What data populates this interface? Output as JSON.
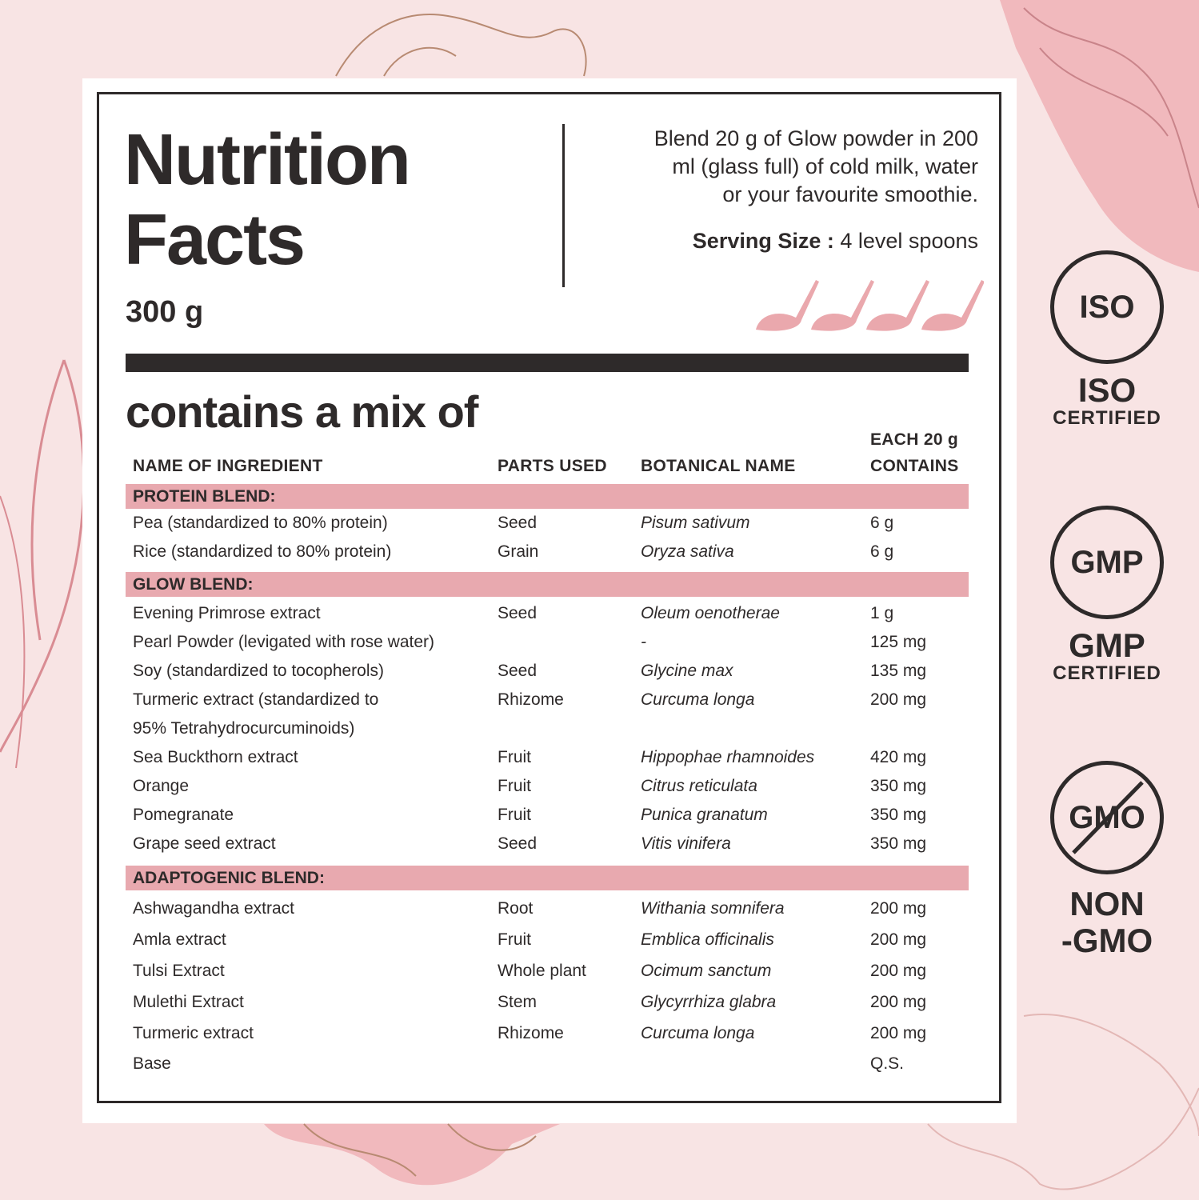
{
  "title_line1": "Nutrition",
  "title_line2": "Facts",
  "net_weight": "300 g",
  "directions": [
    "Blend 20 g of Glow powder in 200",
    "ml (glass full) of cold milk, water",
    "or your favourite smoothie."
  ],
  "serving_label": "Serving Size :",
  "serving_value": "4 level spoons",
  "spoon_icons": 4,
  "mix_heading": "contains a mix of",
  "columns": {
    "name": "NAME OF INGREDIENT",
    "parts": "PARTS USED",
    "botanical": "BOTANICAL NAME",
    "amount_line1": "EACH 20 g",
    "amount_line2": "CONTAINS"
  },
  "blends": [
    {
      "name": "PROTEIN BLEND:",
      "rows": [
        {
          "name": "Pea (standardized to 80% protein)",
          "parts": "Seed",
          "botanical": "Pisum sativum",
          "amount": "6 g"
        },
        {
          "name": "Rice (standardized to 80% protein)",
          "parts": "Grain",
          "botanical": "Oryza sativa",
          "amount": "6 g"
        }
      ]
    },
    {
      "name": "GLOW BLEND:",
      "rows": [
        {
          "name": "Evening Primrose extract",
          "parts": "Seed",
          "botanical": "Oleum oenotherae",
          "amount": "1 g"
        },
        {
          "name": "Pearl Powder (levigated with rose water)",
          "parts": "",
          "botanical": "-",
          "amount": "125 mg"
        },
        {
          "name": "Soy (standardized to tocopherols)",
          "parts": "Seed",
          "botanical": "Glycine max",
          "amount": "135 mg"
        },
        {
          "name": "Turmeric extract (standardized to",
          "parts": "Rhizome",
          "botanical": "Curcuma longa",
          "amount": "200 mg"
        },
        {
          "name": "95% Tetrahydrocurcuminoids)",
          "parts": "",
          "botanical": "",
          "amount": ""
        },
        {
          "name": "Sea Buckthorn extract",
          "parts": "Fruit",
          "botanical": "Hippophae rhamnoides",
          "amount": "420 mg"
        },
        {
          "name": "Orange",
          "parts": "Fruit",
          "botanical": "Citrus reticulata",
          "amount": "350 mg"
        },
        {
          "name": "Pomegranate",
          "parts": "Fruit",
          "botanical": "Punica granatum",
          "amount": "350 mg"
        },
        {
          "name": "Grape seed extract",
          "parts": "Seed",
          "botanical": "Vitis vinifera",
          "amount": "350 mg"
        }
      ]
    },
    {
      "name": "ADAPTOGENIC BLEND:",
      "rows": [
        {
          "name": "Ashwagandha extract",
          "parts": "Root",
          "botanical": "Withania somnifera",
          "amount": "200 mg"
        },
        {
          "name": "Amla extract",
          "parts": "Fruit",
          "botanical": "Emblica officinalis",
          "amount": "200 mg"
        },
        {
          "name": "Tulsi Extract",
          "parts": "Whole plant",
          "botanical": "Ocimum sanctum",
          "amount": "200 mg"
        },
        {
          "name": "Mulethi Extract",
          "parts": "Stem",
          "botanical": "Glycyrrhiza glabra",
          "amount": "200 mg"
        },
        {
          "name": "Turmeric extract",
          "parts": "Rhizome",
          "botanical": "Curcuma longa",
          "amount": "200 mg"
        },
        {
          "name": "Base",
          "parts": "",
          "botanical": "",
          "amount": "Q.S."
        }
      ]
    }
  ],
  "badges": [
    {
      "icon_text": "ISO",
      "line1": "ISO",
      "line2": "CERTIFIED",
      "icon": "iso-icon"
    },
    {
      "icon_text": "GMP",
      "line1": "GMP",
      "line2": "CERTIFIED",
      "icon": "gmp-icon"
    },
    {
      "icon_text": "GMO",
      "line1": "NON",
      "line2": "-GMO",
      "icon": "non-gmo-icon"
    }
  ],
  "colors": {
    "background": "#f8e4e4",
    "accent_pink": "#e8a9af",
    "text_dark": "#2e2a2a",
    "line_art_brown": "#b88a72"
  }
}
